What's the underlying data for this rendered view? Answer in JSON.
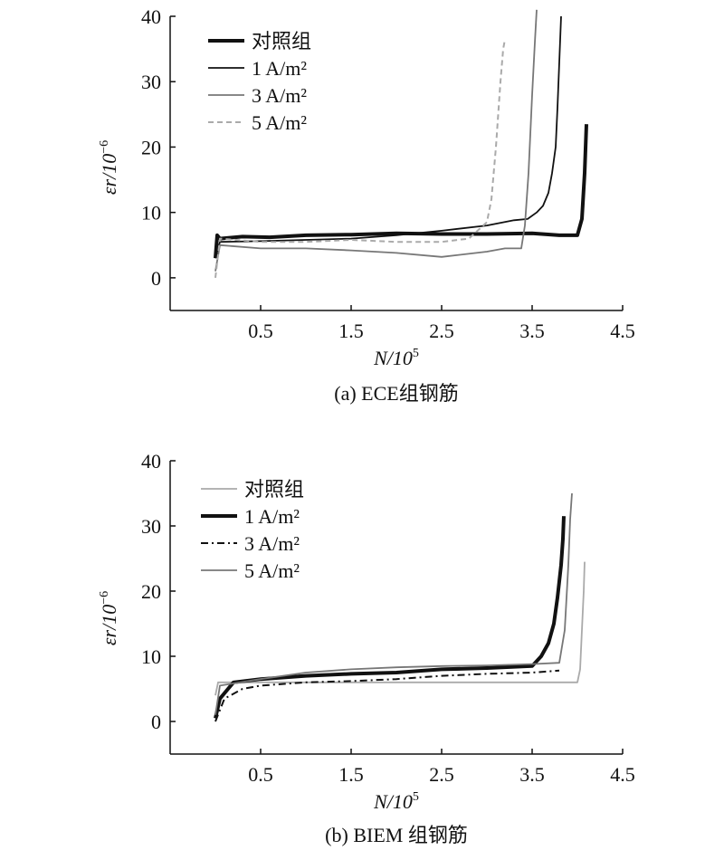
{
  "chart_data": [
    {
      "type": "line",
      "caption": "(a) ECE组钢筋",
      "xlabel": "N/10",
      "xlabel_sup": "5",
      "ylabel": "εr/10",
      "ylabel_sup": "−6",
      "xlim": [
        -0.5,
        4.5
      ],
      "ylim": [
        -5,
        40
      ],
      "xticks": [
        "0.5",
        "1.5",
        "2.5",
        "3.5",
        "4.5"
      ],
      "xtick_values": [
        0.5,
        1.5,
        2.5,
        3.5,
        4.5
      ],
      "yticks": [
        "0",
        "10",
        "20",
        "30",
        "40"
      ],
      "ytick_values": [
        0,
        10,
        20,
        30,
        40
      ],
      "legend_position": "top-left",
      "series": [
        {
          "name": "对照组",
          "color": "#111111",
          "style": "thick",
          "x": [
            0.0,
            0.02,
            0.05,
            0.3,
            0.6,
            1.0,
            1.5,
            2.0,
            2.5,
            3.0,
            3.5,
            3.8,
            4.0,
            4.05,
            4.08,
            4.1
          ],
          "y": [
            3,
            6.5,
            6.0,
            6.3,
            6.2,
            6.5,
            6.6,
            6.8,
            6.7,
            6.7,
            6.8,
            6.5,
            6.5,
            9,
            16,
            23.5
          ]
        },
        {
          "name": "1 A/m²",
          "color": "#111111",
          "style": "thin",
          "x": [
            0.0,
            0.05,
            0.5,
            1.0,
            1.5,
            2.0,
            2.5,
            3.0,
            3.3,
            3.45,
            3.55,
            3.62,
            3.68,
            3.72,
            3.76,
            3.78,
            3.8,
            3.82
          ],
          "y": [
            3,
            5.5,
            5.6,
            5.8,
            6.0,
            6.5,
            7.2,
            8.0,
            8.8,
            9,
            10,
            11,
            13,
            16,
            20,
            26,
            33,
            40
          ]
        },
        {
          "name": "3 A/m²",
          "color": "#777777",
          "style": "thin",
          "x": [
            0.0,
            0.05,
            0.5,
            1.0,
            1.5,
            2.0,
            2.5,
            3.0,
            3.2,
            3.38,
            3.42,
            3.46,
            3.5,
            3.53,
            3.55
          ],
          "y": [
            1,
            5.0,
            4.5,
            4.5,
            4.2,
            3.8,
            3.2,
            4.0,
            4.5,
            4.5,
            8,
            16,
            28,
            36,
            41
          ]
        },
        {
          "name": "5 A/m²",
          "color": "#aaaaaa",
          "style": "dashed",
          "x": [
            0.0,
            0.05,
            0.5,
            1.0,
            1.5,
            2.0,
            2.5,
            2.8,
            3.0,
            3.05,
            3.1,
            3.15,
            3.18,
            3.2
          ],
          "y": [
            0,
            6.0,
            5.5,
            5.5,
            5.8,
            5.5,
            5.5,
            6.0,
            8.5,
            12,
            20,
            30,
            35,
            36.5
          ]
        }
      ]
    },
    {
      "type": "line",
      "caption": "(b) BIEM 组钢筋",
      "xlabel": "N/10",
      "xlabel_sup": "5",
      "ylabel": "εr/10",
      "ylabel_sup": "−6",
      "xlim": [
        -0.5,
        4.5
      ],
      "ylim": [
        -5,
        40
      ],
      "xticks": [
        "0.5",
        "1.5",
        "2.5",
        "3.5",
        "4.5"
      ],
      "xtick_values": [
        0.5,
        1.5,
        2.5,
        3.5,
        4.5
      ],
      "yticks": [
        "0",
        "10",
        "20",
        "30",
        "40"
      ],
      "ytick_values": [
        0,
        10,
        20,
        30,
        40
      ],
      "legend_position": "top-left",
      "series": [
        {
          "name": "对照组",
          "color": "#aaaaaa",
          "style": "thin",
          "x": [
            0.0,
            0.03,
            0.5,
            1.0,
            1.5,
            2.0,
            2.5,
            3.0,
            3.5,
            4.0,
            4.03,
            4.05,
            4.07,
            4.08
          ],
          "y": [
            4,
            6.0,
            6.0,
            6.0,
            6.0,
            6.0,
            6.0,
            6.0,
            6.0,
            6.0,
            8,
            14,
            20,
            24.5
          ]
        },
        {
          "name": "1 A/m²",
          "color": "#111111",
          "style": "thick",
          "x": [
            0.0,
            0.05,
            0.2,
            0.5,
            1.0,
            1.5,
            2.0,
            2.5,
            3.0,
            3.5,
            3.6,
            3.68,
            3.74,
            3.78,
            3.82,
            3.84,
            3.85
          ],
          "y": [
            0.5,
            3.5,
            6.0,
            6.5,
            7.0,
            7.3,
            7.5,
            8.0,
            8.2,
            8.5,
            10,
            12,
            15,
            19,
            24,
            28,
            31.5
          ]
        },
        {
          "name": "3 A/m²",
          "color": "#111111",
          "style": "dashdot",
          "x": [
            0.0,
            0.1,
            0.3,
            0.5,
            1.0,
            1.5,
            2.0,
            2.5,
            3.0,
            3.5,
            3.8
          ],
          "y": [
            0,
            3.5,
            5.0,
            5.5,
            6.0,
            6.2,
            6.5,
            7.0,
            7.3,
            7.5,
            7.8
          ]
        },
        {
          "name": "5 A/m²",
          "color": "#777777",
          "style": "thin",
          "x": [
            0.0,
            0.05,
            0.5,
            1.0,
            1.5,
            2.0,
            2.5,
            3.0,
            3.5,
            3.8,
            3.86,
            3.9,
            3.92,
            3.94
          ],
          "y": [
            1,
            5.5,
            6.5,
            7.5,
            8.0,
            8.3,
            8.5,
            8.6,
            8.8,
            9,
            14,
            24,
            31,
            35
          ]
        }
      ]
    }
  ]
}
